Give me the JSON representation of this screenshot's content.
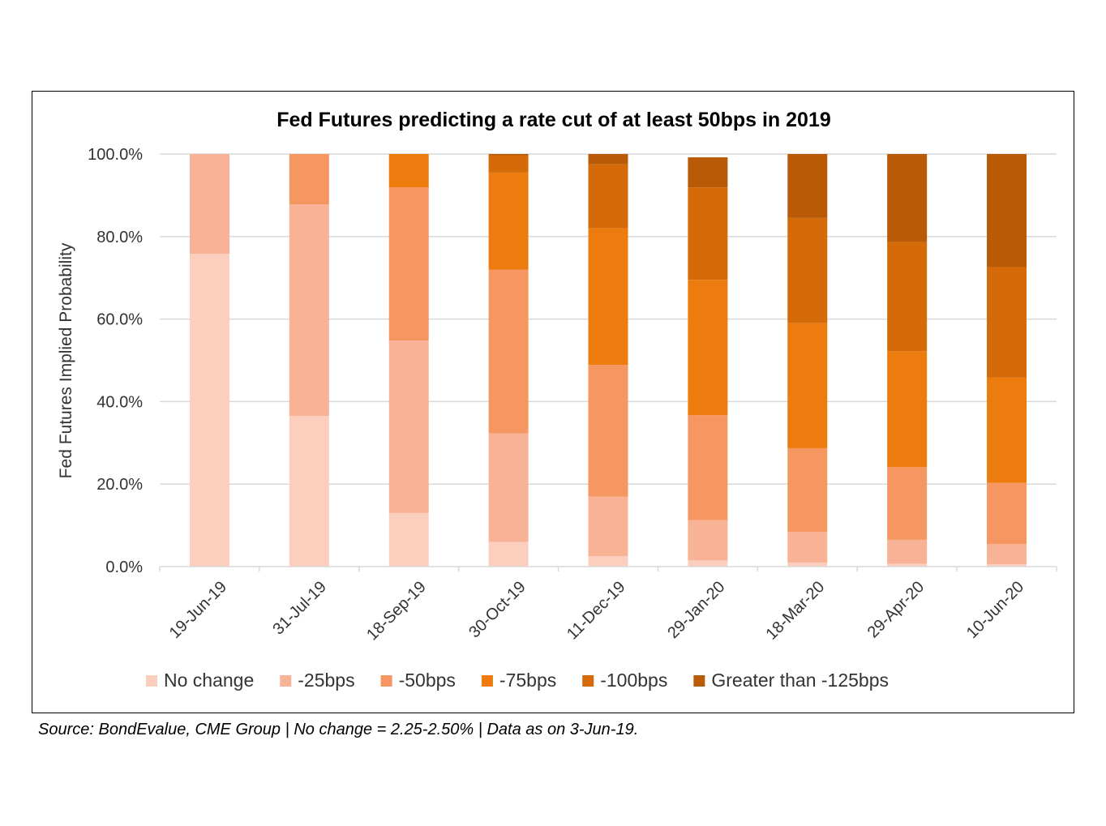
{
  "chart_data": {
    "type": "bar",
    "stacked": true,
    "title": "Fed Futures predicting a rate cut of at least 50bps in 2019",
    "ylabel": "Fed Futures Implied Probability",
    "xlabel": "",
    "ylim": [
      0,
      100
    ],
    "yticks": [
      "0.0%",
      "20.0%",
      "40.0%",
      "60.0%",
      "80.0%",
      "100.0%"
    ],
    "grid": true,
    "legend_position": "bottom",
    "categories": [
      "19-Jun-19",
      "31-Jul-19",
      "18-Sep-19",
      "30-Oct-19",
      "11-Dec-19",
      "29-Jan-20",
      "18-Mar-20",
      "29-Apr-20",
      "10-Jun-20"
    ],
    "series": [
      {
        "name": "No change",
        "color": "#FBCEBD",
        "values": [
          75.8,
          36.5,
          13.0,
          6.0,
          2.5,
          1.5,
          1.0,
          0.7,
          0.6
        ]
      },
      {
        "name": "-25bps",
        "color": "#F8B295",
        "values": [
          24.2,
          51.3,
          41.8,
          26.3,
          14.5,
          9.8,
          7.4,
          5.8,
          4.9
        ]
      },
      {
        "name": "-50bps",
        "color": "#F69660",
        "values": [
          0,
          12.2,
          37.1,
          39.7,
          31.9,
          25.4,
          20.3,
          17.6,
          14.8
        ]
      },
      {
        "name": "-75bps",
        "color": "#EC7C0E",
        "values": [
          0,
          0,
          8.1,
          23.5,
          33.1,
          32.8,
          30.3,
          28.1,
          25.5
        ]
      },
      {
        "name": "-100bps",
        "color": "#D46A08",
        "values": [
          0,
          0,
          0,
          4.2,
          15.5,
          22.4,
          25.5,
          26.5,
          26.8
        ]
      },
      {
        "name": "Greater than -125bps",
        "color": "#B85A06",
        "values": [
          0,
          0,
          0,
          0.3,
          2.5,
          7.3,
          15.5,
          21.3,
          27.4
        ]
      }
    ]
  },
  "source_note": "Source: BondEvalue, CME Group | No change = 2.25-2.50% | Data as on 3-Jun-19."
}
